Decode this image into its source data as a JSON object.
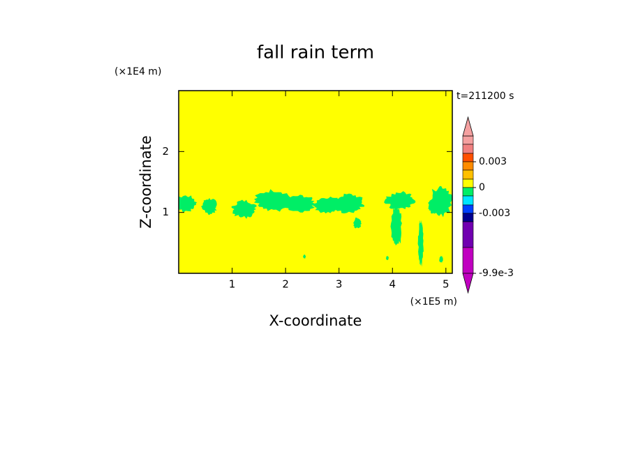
{
  "chart_data": {
    "type": "contour",
    "title": "fall rain term",
    "x_label": "X-coordinate",
    "y_label": "Z-coordinate",
    "x_unit": "(×1E5 m)",
    "y_unit": "(×1E4 m)",
    "time_label": "t=211200 s",
    "xlim": [
      0,
      5.12
    ],
    "ylim": [
      0,
      3
    ],
    "xticks": [
      1,
      2,
      3,
      4,
      5
    ],
    "yticks": [
      1,
      2
    ],
    "colorbar": {
      "levels": [
        0.006,
        0.005,
        0.004,
        0.003,
        0.002,
        0.001,
        0,
        -0.001,
        -0.002,
        -0.003,
        -0.004,
        -0.007,
        -0.0099
      ],
      "colors": [
        "#f4a0a0",
        "#f08080",
        "#ff5000",
        "#ff8c00",
        "#ffc000",
        "#ffff00",
        "#00ee66",
        "#00e5ff",
        "#0040ff",
        "#000090",
        "#7000b0",
        "#c000c0"
      ],
      "ticks": [
        0.003,
        0,
        -0.003,
        {
          "value": -0.0099,
          "label": "-9.9e-3"
        }
      ]
    }
  }
}
